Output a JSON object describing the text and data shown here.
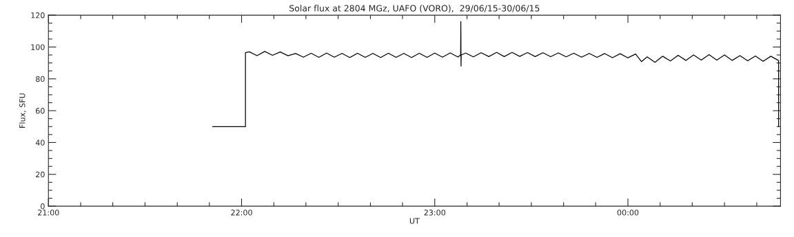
{
  "chart_data": {
    "type": "line",
    "title": "Solar flux at 2804 MGz, UAFO (VORO),  29/06/15-30/06/15",
    "xlabel": "UT",
    "ylabel": "Flux, SFU",
    "x": [
      21.85,
      22.02,
      22.02,
      22.04,
      22.08,
      22.12,
      22.16,
      22.2,
      22.24,
      22.28,
      22.32,
      22.36,
      22.4,
      22.44,
      22.48,
      22.52,
      22.56,
      22.6,
      22.64,
      22.68,
      22.72,
      22.76,
      22.8,
      22.84,
      22.88,
      22.92,
      22.96,
      23.0,
      23.04,
      23.08,
      23.12,
      23.134,
      23.135,
      23.136,
      23.137,
      23.16,
      23.2,
      23.24,
      23.28,
      23.32,
      23.36,
      23.4,
      23.44,
      23.48,
      23.52,
      23.56,
      23.6,
      23.64,
      23.68,
      23.72,
      23.76,
      23.8,
      23.84,
      23.88,
      23.92,
      23.96,
      24.0,
      24.04,
      24.07,
      24.1,
      24.14,
      24.18,
      24.22,
      24.26,
      24.3,
      24.34,
      24.38,
      24.42,
      24.46,
      24.5,
      24.54,
      24.58,
      24.62,
      24.66,
      24.7,
      24.74,
      24.78,
      24.78
    ],
    "series": [
      {
        "color": "#000000",
        "values": [
          50,
          50,
          96.5,
          97.0,
          94.6,
          97.2,
          94.8,
          96.9,
          94.5,
          95.9,
          93.6,
          96.1,
          93.5,
          96.2,
          93.6,
          96.0,
          93.4,
          96.1,
          93.5,
          96.0,
          93.4,
          96.1,
          93.5,
          96.0,
          93.4,
          96.1,
          93.5,
          96.2,
          93.6,
          96.3,
          93.7,
          95.0,
          116,
          88,
          95.0,
          96.2,
          93.8,
          96.4,
          94.0,
          96.6,
          94.0,
          96.6,
          94.1,
          96.5,
          94.0,
          96.4,
          93.9,
          96.3,
          93.8,
          96.1,
          93.6,
          96.0,
          93.5,
          95.9,
          93.3,
          95.8,
          93.2,
          95.6,
          90.8,
          93.8,
          90.4,
          94.2,
          91.2,
          94.8,
          91.6,
          95.0,
          91.8,
          95.2,
          91.8,
          95.0,
          91.6,
          94.6,
          91.3,
          94.4,
          91.0,
          94.2,
          91.5,
          50
        ]
      }
    ],
    "xlim": [
      21,
      24.79
    ],
    "ylim": [
      0,
      120
    ],
    "xticks": [
      {
        "value": 21,
        "label": "21:00"
      },
      {
        "value": 21.167,
        "label": null
      },
      {
        "value": 21.333,
        "label": null
      },
      {
        "value": 21.5,
        "label": null
      },
      {
        "value": 21.667,
        "label": null
      },
      {
        "value": 21.833,
        "label": null
      },
      {
        "value": 22,
        "label": "22:00"
      },
      {
        "value": 22.167,
        "label": null
      },
      {
        "value": 22.333,
        "label": null
      },
      {
        "value": 22.5,
        "label": null
      },
      {
        "value": 22.667,
        "label": null
      },
      {
        "value": 22.833,
        "label": null
      },
      {
        "value": 23,
        "label": "23:00"
      },
      {
        "value": 23.167,
        "label": null
      },
      {
        "value": 23.333,
        "label": null
      },
      {
        "value": 23.5,
        "label": null
      },
      {
        "value": 23.667,
        "label": null
      },
      {
        "value": 23.833,
        "label": null
      },
      {
        "value": 24,
        "label": "00:00"
      },
      {
        "value": 24.167,
        "label": null
      },
      {
        "value": 24.333,
        "label": null
      },
      {
        "value": 24.5,
        "label": null
      },
      {
        "value": 24.667,
        "label": null
      }
    ],
    "yticks": [
      0,
      {
        "value": 5,
        "label": null
      },
      {
        "value": 10,
        "label": null
      },
      {
        "value": 15,
        "label": null
      },
      20,
      {
        "value": 25,
        "label": null
      },
      {
        "value": 30,
        "label": null
      },
      {
        "value": 35,
        "label": null
      },
      40,
      {
        "value": 45,
        "label": null
      },
      {
        "value": 50,
        "label": null
      },
      {
        "value": 55,
        "label": null
      },
      60,
      {
        "value": 65,
        "label": null
      },
      {
        "value": 70,
        "label": null
      },
      {
        "value": 75,
        "label": null
      },
      80,
      {
        "value": 85,
        "label": null
      },
      {
        "value": 90,
        "label": null
      },
      {
        "value": 95,
        "label": null
      },
      100,
      {
        "value": 105,
        "label": null
      },
      {
        "value": 110,
        "label": null
      },
      {
        "value": 115,
        "label": null
      },
      120
    ],
    "grid": false,
    "legend": false,
    "marker": "none",
    "line_style": "solid"
  }
}
